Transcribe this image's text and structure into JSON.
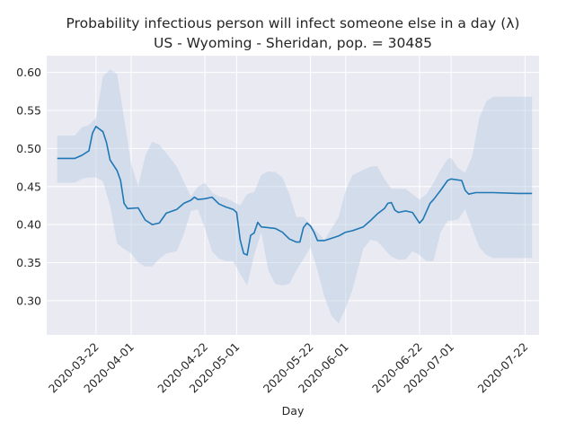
{
  "chart_data": {
    "type": "line",
    "title": "Probability infectious person will infect someone else in a day (λ)",
    "subtitle": "US - Wyoming - Sheridan, pop. = 30485",
    "xlabel": "Day",
    "ylabel": "",
    "grid": true,
    "xlim": [
      "2020-03-08",
      "2020-07-26"
    ],
    "ylim": [
      0.255,
      0.622
    ],
    "x_ticks": [
      "2020-03-22",
      "2020-04-01",
      "2020-04-22",
      "2020-05-01",
      "2020-05-22",
      "2020-06-01",
      "2020-06-22",
      "2020-07-01",
      "2020-07-22"
    ],
    "y_ticks": [
      0.3,
      0.35,
      0.4,
      0.45,
      0.5,
      0.55,
      0.6
    ],
    "y_tick_labels": [
      "0.30",
      "0.35",
      "0.40",
      "0.45",
      "0.50",
      "0.55",
      "0.60"
    ],
    "colors": {
      "line": "#1f77b4",
      "band": "#b8cde3",
      "background": "#eaeaf2",
      "grid": "#ffffff"
    },
    "series": [
      {
        "values": [
          [
            "2020-03-11",
            0.487
          ],
          [
            "2020-03-16",
            0.487
          ],
          [
            "2020-03-18",
            0.491
          ],
          [
            "2020-03-20",
            0.497
          ],
          [
            "2020-03-21",
            0.52
          ],
          [
            "2020-03-22",
            0.529
          ],
          [
            "2020-03-24",
            0.522
          ],
          [
            "2020-03-25",
            0.508
          ],
          [
            "2020-03-26",
            0.485
          ],
          [
            "2020-03-28",
            0.471
          ],
          [
            "2020-03-29",
            0.458
          ],
          [
            "2020-03-30",
            0.428
          ],
          [
            "2020-03-31",
            0.421
          ],
          [
            "2020-04-03",
            0.422
          ],
          [
            "2020-04-05",
            0.406
          ],
          [
            "2020-04-07",
            0.4
          ],
          [
            "2020-04-09",
            0.402
          ],
          [
            "2020-04-11",
            0.415
          ],
          [
            "2020-04-14",
            0.42
          ],
          [
            "2020-04-16",
            0.428
          ],
          [
            "2020-04-18",
            0.432
          ],
          [
            "2020-04-19",
            0.436
          ],
          [
            "2020-04-20",
            0.433
          ],
          [
            "2020-04-22",
            0.434
          ],
          [
            "2020-04-24",
            0.436
          ],
          [
            "2020-04-26",
            0.427
          ],
          [
            "2020-04-28",
            0.423
          ],
          [
            "2020-04-30",
            0.42
          ],
          [
            "2020-05-01",
            0.416
          ],
          [
            "2020-05-02",
            0.38
          ],
          [
            "2020-05-03",
            0.362
          ],
          [
            "2020-05-04",
            0.36
          ],
          [
            "2020-05-05",
            0.386
          ],
          [
            "2020-05-06",
            0.389
          ],
          [
            "2020-05-07",
            0.403
          ],
          [
            "2020-05-08",
            0.397
          ],
          [
            "2020-05-12",
            0.395
          ],
          [
            "2020-05-14",
            0.39
          ],
          [
            "2020-05-16",
            0.381
          ],
          [
            "2020-05-18",
            0.377
          ],
          [
            "2020-05-19",
            0.377
          ],
          [
            "2020-05-20",
            0.396
          ],
          [
            "2020-05-21",
            0.402
          ],
          [
            "2020-05-22",
            0.398
          ],
          [
            "2020-05-23",
            0.39
          ],
          [
            "2020-05-24",
            0.379
          ],
          [
            "2020-05-26",
            0.379
          ],
          [
            "2020-05-28",
            0.382
          ],
          [
            "2020-05-30",
            0.385
          ],
          [
            "2020-06-01",
            0.39
          ],
          [
            "2020-06-03",
            0.392
          ],
          [
            "2020-06-06",
            0.397
          ],
          [
            "2020-06-08",
            0.405
          ],
          [
            "2020-06-10",
            0.414
          ],
          [
            "2020-06-12",
            0.421
          ],
          [
            "2020-06-13",
            0.428
          ],
          [
            "2020-06-14",
            0.429
          ],
          [
            "2020-06-15",
            0.419
          ],
          [
            "2020-06-16",
            0.416
          ],
          [
            "2020-06-18",
            0.418
          ],
          [
            "2020-06-20",
            0.416
          ],
          [
            "2020-06-22",
            0.402
          ],
          [
            "2020-06-23",
            0.407
          ],
          [
            "2020-06-25",
            0.428
          ],
          [
            "2020-06-26",
            0.433
          ],
          [
            "2020-06-28",
            0.445
          ],
          [
            "2020-06-30",
            0.458
          ],
          [
            "2020-07-01",
            0.46
          ],
          [
            "2020-07-04",
            0.458
          ],
          [
            "2020-07-05",
            0.445
          ],
          [
            "2020-07-06",
            0.44
          ],
          [
            "2020-07-08",
            0.442
          ],
          [
            "2020-07-13",
            0.442
          ],
          [
            "2020-07-20",
            0.441
          ],
          [
            "2020-07-24",
            0.441
          ]
        ],
        "band": [
          [
            "2020-03-11",
            0.455,
            0.517
          ],
          [
            "2020-03-16",
            0.455,
            0.517
          ],
          [
            "2020-03-18",
            0.46,
            0.528
          ],
          [
            "2020-03-20",
            0.462,
            0.531
          ],
          [
            "2020-03-22",
            0.462,
            0.54
          ],
          [
            "2020-03-24",
            0.457,
            0.595
          ],
          [
            "2020-03-26",
            0.425,
            0.604
          ],
          [
            "2020-03-28",
            0.375,
            0.598
          ],
          [
            "2020-03-30",
            0.368,
            0.54
          ],
          [
            "2020-04-01",
            0.362,
            0.48
          ],
          [
            "2020-04-03",
            0.35,
            0.45
          ],
          [
            "2020-04-05",
            0.345,
            0.49
          ],
          [
            "2020-04-07",
            0.345,
            0.509
          ],
          [
            "2020-04-09",
            0.355,
            0.505
          ],
          [
            "2020-04-11",
            0.362,
            0.494
          ],
          [
            "2020-04-14",
            0.365,
            0.476
          ],
          [
            "2020-04-16",
            0.388,
            0.456
          ],
          [
            "2020-04-18",
            0.418,
            0.437
          ],
          [
            "2020-04-20",
            0.42,
            0.45
          ],
          [
            "2020-04-22",
            0.395,
            0.455
          ],
          [
            "2020-04-24",
            0.365,
            0.442
          ],
          [
            "2020-04-26",
            0.355,
            0.437
          ],
          [
            "2020-04-28",
            0.352,
            0.435
          ],
          [
            "2020-04-30",
            0.352,
            0.43
          ],
          [
            "2020-05-02",
            0.335,
            0.425
          ],
          [
            "2020-05-04",
            0.32,
            0.44
          ],
          [
            "2020-05-06",
            0.36,
            0.443
          ],
          [
            "2020-05-08",
            0.39,
            0.465
          ],
          [
            "2020-05-10",
            0.34,
            0.47
          ],
          [
            "2020-05-12",
            0.322,
            0.469
          ],
          [
            "2020-05-14",
            0.32,
            0.462
          ],
          [
            "2020-05-16",
            0.322,
            0.44
          ],
          [
            "2020-05-18",
            0.34,
            0.41
          ],
          [
            "2020-05-20",
            0.355,
            0.41
          ],
          [
            "2020-05-22",
            0.37,
            0.4
          ],
          [
            "2020-05-24",
            0.34,
            0.39
          ],
          [
            "2020-05-26",
            0.305,
            0.38
          ],
          [
            "2020-05-28",
            0.28,
            0.395
          ],
          [
            "2020-05-30",
            0.27,
            0.41
          ],
          [
            "2020-06-01",
            0.29,
            0.445
          ],
          [
            "2020-06-03",
            0.315,
            0.465
          ],
          [
            "2020-06-06",
            0.368,
            0.472
          ],
          [
            "2020-06-08",
            0.38,
            0.476
          ],
          [
            "2020-06-10",
            0.378,
            0.477
          ],
          [
            "2020-06-12",
            0.368,
            0.46
          ],
          [
            "2020-06-14",
            0.358,
            0.447
          ],
          [
            "2020-06-16",
            0.354,
            0.447
          ],
          [
            "2020-06-18",
            0.354,
            0.447
          ],
          [
            "2020-06-20",
            0.365,
            0.44
          ],
          [
            "2020-06-22",
            0.36,
            0.433
          ],
          [
            "2020-06-24",
            0.352,
            0.44
          ],
          [
            "2020-06-26",
            0.352,
            0.455
          ],
          [
            "2020-06-28",
            0.39,
            0.472
          ],
          [
            "2020-06-30",
            0.405,
            0.486
          ],
          [
            "2020-07-01",
            0.405,
            0.488
          ],
          [
            "2020-07-03",
            0.407,
            0.474
          ],
          [
            "2020-07-05",
            0.42,
            0.468
          ],
          [
            "2020-07-07",
            0.395,
            0.49
          ],
          [
            "2020-07-09",
            0.37,
            0.54
          ],
          [
            "2020-07-11",
            0.36,
            0.562
          ],
          [
            "2020-07-13",
            0.356,
            0.568
          ],
          [
            "2020-07-24",
            0.356,
            0.568
          ]
        ]
      }
    ]
  }
}
